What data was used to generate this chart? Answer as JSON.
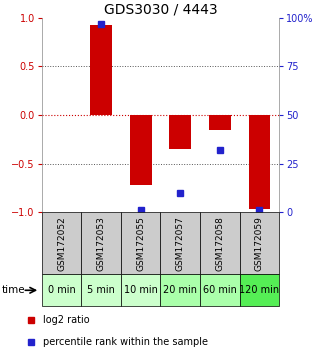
{
  "title": "GDS3030 / 4443",
  "samples": [
    "GSM172052",
    "GSM172053",
    "GSM172055",
    "GSM172057",
    "GSM172058",
    "GSM172059"
  ],
  "time_labels": [
    "0 min",
    "5 min",
    "10 min",
    "20 min",
    "60 min",
    "120 min"
  ],
  "log2_ratios": [
    0.0,
    0.93,
    -0.72,
    -0.35,
    -0.15,
    -0.97
  ],
  "percentile_ranks": [
    null,
    97,
    1,
    10,
    32,
    1
  ],
  "ylim_left": [
    -1.0,
    1.0
  ],
  "ylim_right": [
    0,
    100
  ],
  "left_yticks": [
    -1,
    -0.5,
    0,
    0.5,
    1
  ],
  "right_yticks": [
    0,
    25,
    50,
    75,
    100
  ],
  "bar_color": "#cc0000",
  "dot_color": "#2222cc",
  "grid_dotted_color": "#555555",
  "zero_line_color": "#cc0000",
  "sample_bg_color": "#cccccc",
  "time_bg_colors": [
    "#ccffcc",
    "#ccffcc",
    "#ccffcc",
    "#aaffaa",
    "#aaffaa",
    "#55ee55"
  ],
  "time_label": "time",
  "legend_log2": "log2 ratio",
  "legend_pct": "percentile rank within the sample",
  "bar_width": 0.55,
  "title_fontsize": 10,
  "tick_fontsize": 7,
  "sample_fontsize": 6.5,
  "time_fontsize": 7,
  "legend_fontsize": 7
}
